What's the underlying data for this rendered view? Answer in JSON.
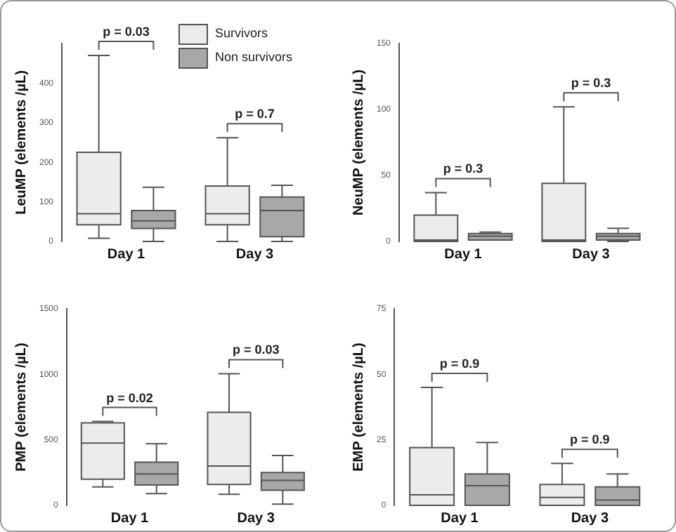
{
  "chart_data": [
    {
      "type": "box",
      "ylabel": "LeuMP (elements /µL)",
      "categories": [
        "Day 1",
        "Day 3"
      ],
      "ylim": [
        0,
        500
      ],
      "yticks": [
        0,
        100,
        200,
        300,
        400
      ],
      "grid": false,
      "legend": "top right",
      "annotations": [
        "p = 0.03",
        "p = 0.7"
      ],
      "series": [
        {
          "name": "Survivors",
          "color": "#ececec",
          "boxes": [
            {
              "low": 8,
              "q1": 42,
              "median": 70,
              "q3": 225,
              "high": 470
            },
            {
              "low": 0,
              "q1": 42,
              "median": 70,
              "q3": 140,
              "high": 262
            }
          ]
        },
        {
          "name": "Non survivors",
          "color": "#a8a8a8",
          "boxes": [
            {
              "low": 0,
              "q1": 33,
              "median": 52,
              "q3": 78,
              "high": 137
            },
            {
              "low": 0,
              "q1": 12,
              "median": 78,
              "q3": 112,
              "high": 142
            }
          ]
        }
      ]
    },
    {
      "type": "box",
      "ylabel": "NeuMP (elements /µL)",
      "categories": [
        "Day 1",
        "Day 3"
      ],
      "ylim": [
        0,
        150
      ],
      "yticks": [
        0,
        50,
        100,
        150
      ],
      "grid": false,
      "annotations": [
        "p = 0.3",
        "p = 0.3"
      ],
      "series": [
        {
          "color": "#ececec",
          "boxes": [
            {
              "low": 0,
              "q1": 0,
              "median": 1,
              "q3": 20,
              "high": 37
            },
            {
              "low": 0,
              "q1": 0,
              "median": 1,
              "q3": 44,
              "high": 102
            }
          ]
        },
        {
          "color": "#a8a8a8",
          "boxes": [
            {
              "low": 1,
              "q1": 1,
              "median": 4,
              "q3": 6,
              "high": 7
            },
            {
              "low": 0,
              "q1": 1,
              "median": 4,
              "q3": 6,
              "high": 10
            }
          ]
        }
      ]
    },
    {
      "type": "box",
      "ylabel": "PMP (elements /µL)",
      "categories": [
        "Day 1",
        "Day 3"
      ],
      "ylim": [
        0,
        1500
      ],
      "yticks": [
        0,
        500,
        1000,
        1500
      ],
      "grid": false,
      "annotations": [
        "p = 0.02",
        "p = 0.03"
      ],
      "series": [
        {
          "color": "#ececec",
          "boxes": [
            {
              "low": 140,
              "q1": 200,
              "median": 475,
              "q3": 630,
              "high": 640
            },
            {
              "low": 85,
              "q1": 160,
              "median": 300,
              "q3": 710,
              "high": 1005
            }
          ]
        },
        {
          "color": "#a8a8a8",
          "boxes": [
            {
              "low": 90,
              "q1": 155,
              "median": 240,
              "q3": 330,
              "high": 470
            },
            {
              "low": 10,
              "q1": 115,
              "median": 190,
              "q3": 250,
              "high": 380
            }
          ]
        }
      ]
    },
    {
      "type": "box",
      "ylabel": "EMP (elements /µL)",
      "categories": [
        "Day 1",
        "Day 3"
      ],
      "ylim": [
        0,
        75
      ],
      "yticks": [
        0,
        25,
        50,
        75
      ],
      "grid": false,
      "annotations": [
        "p = 0.9",
        "p = 0.9"
      ],
      "series": [
        {
          "color": "#ececec",
          "boxes": [
            {
              "low": 0,
              "q1": 0,
              "median": 4,
              "q3": 22,
              "high": 45
            },
            {
              "low": 0,
              "q1": 0,
              "median": 3,
              "q3": 8,
              "high": 16
            }
          ]
        },
        {
          "color": "#a8a8a8",
          "boxes": [
            {
              "low": 0,
              "q1": 0,
              "median": 7.5,
              "q3": 12,
              "high": 24
            },
            {
              "low": 0,
              "q1": 0,
              "median": 2,
              "q3": 7,
              "high": 12
            }
          ]
        }
      ]
    }
  ]
}
